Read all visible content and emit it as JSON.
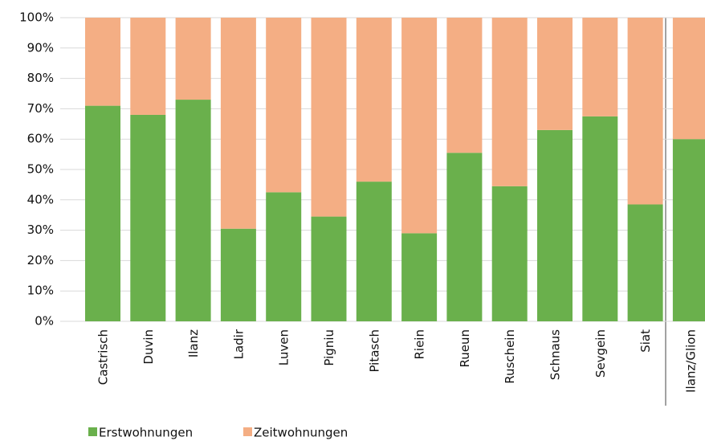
{
  "chart_data": {
    "type": "stacked_bar",
    "categories": [
      "Castrisch",
      "Duvin",
      "Ilanz",
      "Ladir",
      "Luven",
      "Pigniu",
      "Pitasch",
      "Riein",
      "Rueun",
      "Ruschein",
      "Schnaus",
      "Sevgein",
      "Siat",
      "Ilanz/Glion"
    ],
    "series": [
      {
        "name": "Erstwohnungen",
        "color": "#6ab04c",
        "values": [
          71,
          68,
          73,
          30.5,
          42.5,
          34.5,
          46,
          29,
          55.5,
          44.5,
          63,
          67.5,
          38.5,
          60
        ]
      },
      {
        "name": "Zeitwohnungen",
        "color": "#f4ae84",
        "values": [
          29,
          32,
          27,
          69.5,
          57.5,
          65.5,
          54,
          71,
          44.5,
          55.5,
          37,
          32.5,
          61.5,
          40
        ]
      }
    ],
    "ylim": [
      0,
      100
    ],
    "yticks": [
      {
        "value": 0,
        "label": "0%"
      },
      {
        "value": 10,
        "label": "10%"
      },
      {
        "value": 20,
        "label": "20%"
      },
      {
        "value": 30,
        "label": "30%"
      },
      {
        "value": 40,
        "label": "40%"
      },
      {
        "value": 50,
        "label": "50%"
      },
      {
        "value": 60,
        "label": "60%"
      },
      {
        "value": 70,
        "label": "70%"
      },
      {
        "value": 80,
        "label": "80%"
      },
      {
        "value": 90,
        "label": "90%"
      },
      {
        "value": 100,
        "label": "100%"
      }
    ],
    "grid": true,
    "legend": "bottom"
  }
}
